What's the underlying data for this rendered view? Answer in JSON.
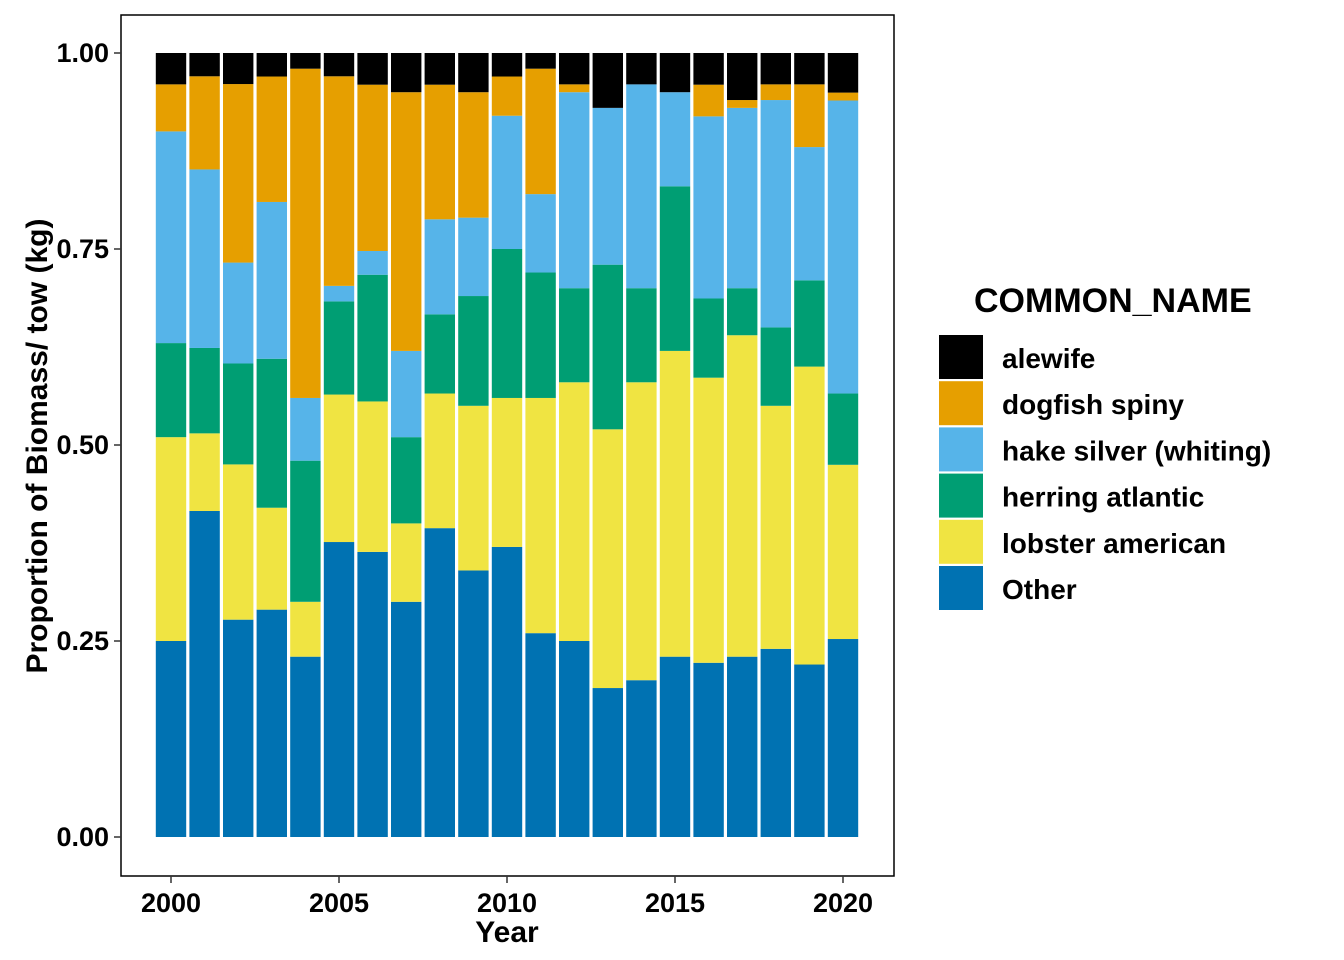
{
  "chart_data": {
    "type": "bar",
    "stacked": true,
    "title": "",
    "xlabel": "Year",
    "ylabel": "Proportion of Biomass/ tow (kg)",
    "ylim": [
      0,
      1
    ],
    "yticks": [
      "0.00",
      "0.25",
      "0.50",
      "0.75",
      "1.00"
    ],
    "xticks": [
      "2000",
      "2005",
      "2010",
      "2015",
      "2020"
    ],
    "grid": false,
    "legend_position": "right",
    "legend_title": "COMMON_NAME",
    "categories": [
      2000,
      2001,
      2002,
      2003,
      2004,
      2005,
      2006,
      2007,
      2008,
      2009,
      2010,
      2011,
      2012,
      2013,
      2014,
      2015,
      2016,
      2017,
      2018,
      2019,
      2020
    ],
    "series": [
      {
        "name": "Other",
        "color": "#0072B2",
        "values": [
          0.25,
          0.42,
          0.28,
          0.29,
          0.23,
          0.38,
          0.36,
          0.3,
          0.39,
          0.34,
          0.37,
          0.26,
          0.25,
          0.19,
          0.2,
          0.23,
          0.22,
          0.23,
          0.24,
          0.22,
          0.25
        ]
      },
      {
        "name": "lobster american",
        "color": "#F0E442",
        "values": [
          0.26,
          0.1,
          0.2,
          0.13,
          0.07,
          0.19,
          0.19,
          0.1,
          0.17,
          0.21,
          0.19,
          0.3,
          0.33,
          0.33,
          0.38,
          0.39,
          0.36,
          0.41,
          0.31,
          0.38,
          0.22
        ]
      },
      {
        "name": "herring atlantic",
        "color": "#009E73",
        "values": [
          0.12,
          0.11,
          0.13,
          0.19,
          0.18,
          0.12,
          0.16,
          0.11,
          0.1,
          0.14,
          0.19,
          0.16,
          0.12,
          0.21,
          0.12,
          0.21,
          0.1,
          0.06,
          0.1,
          0.11,
          0.09
        ]
      },
      {
        "name": "hake silver (whiting)",
        "color": "#56B4E9",
        "values": [
          0.27,
          0.23,
          0.13,
          0.2,
          0.08,
          0.02,
          0.03,
          0.11,
          0.12,
          0.1,
          0.17,
          0.1,
          0.25,
          0.2,
          0.26,
          0.12,
          0.23,
          0.23,
          0.29,
          0.17,
          0.37
        ]
      },
      {
        "name": "dogfish spiny",
        "color": "#E69F00",
        "values": [
          0.06,
          0.12,
          0.23,
          0.16,
          0.42,
          0.27,
          0.21,
          0.33,
          0.17,
          0.16,
          0.05,
          0.16,
          0.01,
          0.0,
          0.0,
          0.0,
          0.04,
          0.01,
          0.02,
          0.08,
          0.01
        ]
      },
      {
        "name": "alewife",
        "color": "#000000",
        "values": [
          0.04,
          0.03,
          0.04,
          0.03,
          0.02,
          0.03,
          0.04,
          0.05,
          0.04,
          0.05,
          0.03,
          0.02,
          0.04,
          0.07,
          0.04,
          0.05,
          0.04,
          0.06,
          0.04,
          0.04,
          0.05
        ]
      }
    ],
    "legend_order": [
      "alewife",
      "dogfish spiny",
      "hake silver (whiting)",
      "herring atlantic",
      "lobster american",
      "Other"
    ]
  }
}
